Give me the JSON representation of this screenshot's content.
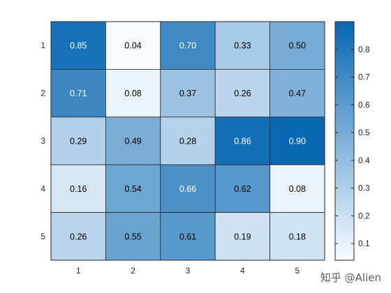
{
  "chart_data": {
    "type": "heatmap",
    "title": "",
    "xlabel": "",
    "ylabel": "",
    "x_categories": [
      "1",
      "2",
      "3",
      "4",
      "5"
    ],
    "y_categories": [
      "1",
      "2",
      "3",
      "4",
      "5"
    ],
    "values": [
      [
        0.85,
        0.04,
        0.7,
        0.33,
        0.5
      ],
      [
        0.71,
        0.08,
        0.37,
        0.26,
        0.47
      ],
      [
        0.29,
        0.49,
        0.28,
        0.86,
        0.9
      ],
      [
        0.16,
        0.54,
        0.66,
        0.62,
        0.08
      ],
      [
        0.26,
        0.55,
        0.61,
        0.19,
        0.18
      ]
    ],
    "value_format": "0.00",
    "colormap": {
      "low": "#f7fbff",
      "high": "#0868b2"
    },
    "color_limits": [
      0.04,
      0.9
    ],
    "colorbar": {
      "ticks": [
        "0.1",
        "0.2",
        "0.3",
        "0.4",
        "0.5",
        "0.6",
        "0.7",
        "0.8"
      ],
      "tick_values": [
        0.1,
        0.2,
        0.3,
        0.4,
        0.5,
        0.6,
        0.7,
        0.8
      ]
    },
    "label_colors": {
      "dark_cell": "#ffffff",
      "light_cell": "#000000"
    },
    "grid": false
  },
  "watermark": "知乎 @Alien"
}
